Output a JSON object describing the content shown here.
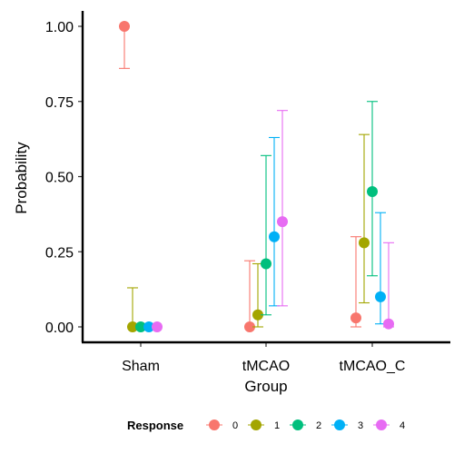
{
  "chart_data": {
    "type": "scatter",
    "title": "",
    "xlabel": "Group",
    "ylabel": "Probability",
    "categories": [
      "Sham",
      "tMCAO",
      "tMCAO_C"
    ],
    "ylim": [
      -0.05,
      1.05
    ],
    "y_ticks": [
      "0.00",
      "0.25",
      "0.50",
      "0.75",
      "1.00"
    ],
    "y_tick_values": [
      0,
      0.25,
      0.5,
      0.75,
      1.0
    ],
    "grid": false,
    "legend": {
      "title": "Response",
      "position": "bottom"
    },
    "series": [
      {
        "name": "0",
        "color": "#F8766D",
        "values": [
          1.0,
          0.0,
          0.03
        ],
        "lower": [
          0.86,
          0.0,
          0.0
        ],
        "upper": [
          1.0,
          0.22,
          0.3
        ]
      },
      {
        "name": "1",
        "color": "#A3A500",
        "values": [
          0.0,
          0.04,
          0.28
        ],
        "lower": [
          0.0,
          0.0,
          0.08
        ],
        "upper": [
          0.13,
          0.21,
          0.64
        ]
      },
      {
        "name": "2",
        "color": "#00BF7D",
        "values": [
          0.0,
          0.21,
          0.45
        ],
        "lower": [
          0.0,
          0.04,
          0.17
        ],
        "upper": [
          0.0,
          0.57,
          0.75
        ]
      },
      {
        "name": "3",
        "color": "#00B0F6",
        "values": [
          0.0,
          0.3,
          0.1
        ],
        "lower": [
          0.0,
          0.07,
          0.01
        ],
        "upper": [
          0.0,
          0.63,
          0.38
        ]
      },
      {
        "name": "4",
        "color": "#E76BF3",
        "values": [
          0.0,
          0.35,
          0.01
        ],
        "lower": [
          0.0,
          0.07,
          0.0
        ],
        "upper": [
          0.0,
          0.72,
          0.28
        ]
      }
    ]
  }
}
